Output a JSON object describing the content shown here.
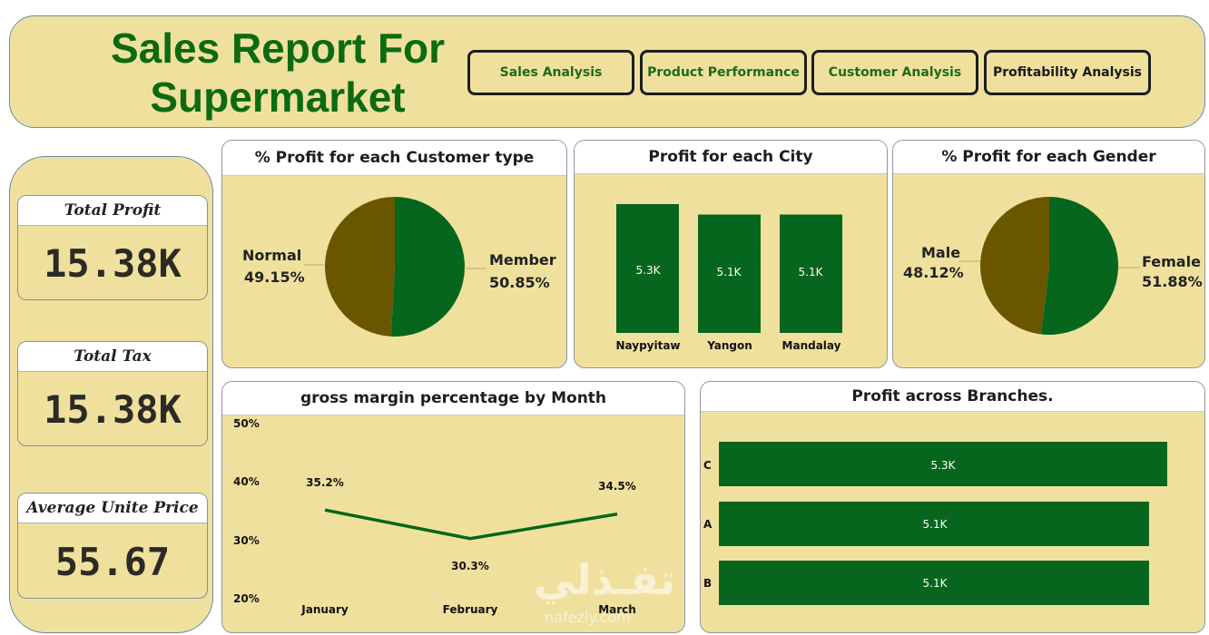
{
  "header": {
    "title": "Sales Report For Supermarket",
    "nav": [
      {
        "label": "Sales Analysis",
        "active": false
      },
      {
        "label": "Product Performance",
        "active": false
      },
      {
        "label": "Customer Analysis",
        "active": false
      },
      {
        "label": "Profitability Analysis",
        "active": true
      }
    ]
  },
  "kpis": [
    {
      "title": "Total Profit",
      "value": "15.38K"
    },
    {
      "title": "Total Tax",
      "value": "15.38K"
    },
    {
      "title": "Average Unite Price",
      "value": "55.67"
    }
  ],
  "colors": {
    "panel": "#efe19d",
    "green": "#07661d",
    "olive": "#6b5600",
    "title_green": "#0d6a12"
  },
  "chart_data": [
    {
      "type": "pie",
      "title": "% Profit for each Customer type",
      "labels": [
        "Member",
        "Normal"
      ],
      "values": [
        50.85,
        49.15
      ],
      "value_labels": [
        "50.85%",
        "49.15%"
      ]
    },
    {
      "type": "bar",
      "title": "Profit for each City",
      "categories": [
        "Naypyitaw",
        "Yangon",
        "Mandalay"
      ],
      "values": [
        5.3,
        5.1,
        5.1
      ],
      "value_labels": [
        "5.3K",
        "5.1K",
        "5.1K"
      ]
    },
    {
      "type": "pie",
      "title": "% Profit for each Gender",
      "labels": [
        "Female",
        "Male"
      ],
      "values": [
        51.88,
        48.12
      ],
      "value_labels": [
        "51.88%",
        "48.12%"
      ]
    },
    {
      "type": "line",
      "title": "gross margin percentage by Month",
      "categories": [
        "January",
        "February",
        "March"
      ],
      "values": [
        35.2,
        30.3,
        34.5
      ],
      "value_labels": [
        "35.2%",
        "30.3%",
        "34.5%"
      ],
      "y_ticks": [
        "50%",
        "40%",
        "30%",
        "20%"
      ],
      "ylim": [
        20,
        50
      ]
    },
    {
      "type": "bar",
      "orientation": "horizontal",
      "title": "Profit across Branches.",
      "categories": [
        "C",
        "A",
        "B"
      ],
      "values": [
        5.3,
        5.1,
        5.1
      ],
      "value_labels": [
        "5.3K",
        "5.1K",
        "5.1K"
      ]
    }
  ],
  "watermark": {
    "text": "تفـذلي",
    "sub": "nafezly.com"
  }
}
